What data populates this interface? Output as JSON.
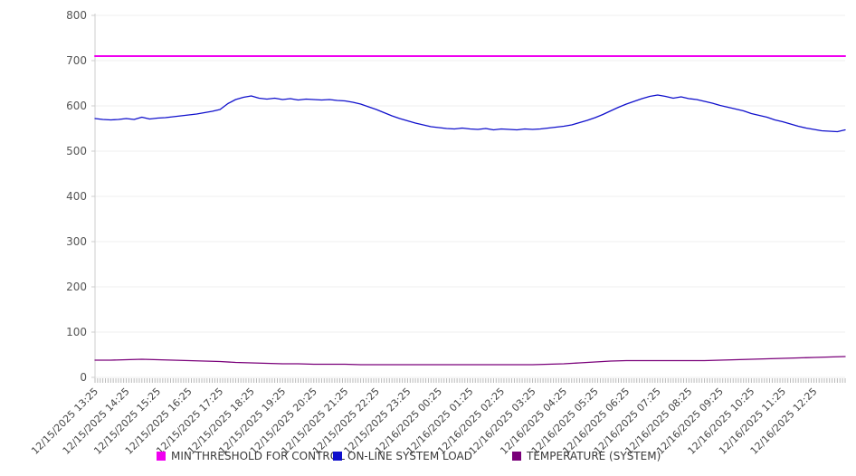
{
  "chart_data": {
    "type": "line",
    "title": "",
    "xlabel": "",
    "ylabel": "",
    "grid": true,
    "background": "#ffffff",
    "grid_color": "#efefef",
    "axis_color": "#cccccc",
    "minor_tick_color": "#b8b8b8",
    "y_axis": {
      "min": 0,
      "max": 800,
      "tick_step": 100,
      "ticks": [
        0,
        100,
        200,
        300,
        400,
        500,
        600,
        700,
        800
      ]
    },
    "x_axis": {
      "labels": [
        "12/15/2025 13:25",
        "12/15/2025 14:25",
        "12/15/2025 15:25",
        "12/15/2025 16:25",
        "12/15/2025 17:25",
        "12/15/2025 18:25",
        "12/15/2025 19:25",
        "12/15/2025 20:25",
        "12/15/2025 21:25",
        "12/15/2025 22:25",
        "12/15/2025 23:25",
        "12/16/2025 00:25",
        "12/16/2025 01:25",
        "12/16/2025 02:25",
        "12/16/2025 03:25",
        "12/16/2025 04:25",
        "12/16/2025 05:25",
        "12/16/2025 06:25",
        "12/16/2025 07:25",
        "12/16/2025 08:25",
        "12/16/2025 09:25",
        "12/16/2025 10:25",
        "12/16/2025 11:25",
        "12/16/2025 12:25"
      ],
      "minor_ticks_per_label": 12,
      "total_minor_ticks": 289,
      "label_rotation_deg": -45
    },
    "legend_position": "bottom",
    "legend_x": [
      173,
      368,
      566
    ],
    "series": [
      {
        "name": "MIN THRESHOLD FOR CONTROL",
        "color": "#f000f0",
        "width": 2,
        "values": [
          710,
          710
        ]
      },
      {
        "name": "ON-LINE SYSTEM LOAD",
        "color": "#1010cc",
        "width": 1.3,
        "values": [
          572,
          570,
          569,
          570,
          572,
          570,
          575,
          571,
          573,
          574,
          576,
          578,
          580,
          582,
          585,
          588,
          592,
          605,
          614,
          619,
          622,
          617,
          615,
          617,
          614,
          616,
          613,
          615,
          614,
          613,
          614,
          612,
          611,
          608,
          604,
          598,
          592,
          585,
          578,
          572,
          567,
          562,
          558,
          554,
          552,
          550,
          549,
          551,
          549,
          548,
          550,
          547,
          549,
          548,
          547,
          549,
          548,
          549,
          551,
          553,
          555,
          558,
          563,
          568,
          574,
          581,
          589,
          597,
          604,
          610,
          616,
          621,
          624,
          621,
          617,
          620,
          616,
          614,
          610,
          606,
          601,
          597,
          593,
          589,
          583,
          579,
          575,
          569,
          565,
          560,
          555,
          551,
          548,
          545,
          544,
          543,
          547
        ]
      },
      {
        "name": "TEMPERATURE (SYSTEM)",
        "color": "#7a007a",
        "width": 1.3,
        "values": [
          38,
          38,
          39,
          40,
          39,
          38,
          37,
          36,
          35,
          33,
          32,
          31,
          30,
          30,
          29,
          29,
          29,
          28,
          28,
          28,
          28,
          28,
          28,
          28,
          28,
          28,
          28,
          28,
          28,
          29,
          30,
          32,
          34,
          36,
          37,
          37,
          37,
          37,
          37,
          37,
          38,
          39,
          40,
          41,
          42,
          43,
          44,
          45,
          46
        ]
      }
    ]
  }
}
